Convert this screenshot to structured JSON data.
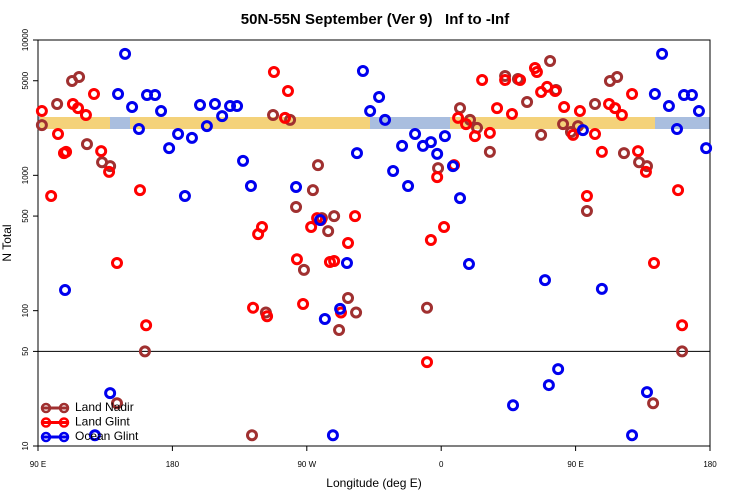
{
  "chart_data": {
    "type": "scatter",
    "title": "50N-55N September (Ver 9)   Inf to -Inf",
    "x_label": "Longitude (deg E)",
    "y_label": "N Total",
    "log_y": true,
    "xlim": [
      90,
      540
    ],
    "ylim": [
      10,
      10000
    ],
    "xticks": [
      {
        "value": 90,
        "label": "90 E"
      },
      180,
      {
        "value": 270,
        "label": "90 W"
      },
      {
        "value": 360,
        "label": "0"
      },
      {
        "value": 450,
        "label": "90 E"
      },
      {
        "value": 540,
        "label": "180"
      }
    ],
    "yticks": [
      10,
      50,
      100,
      500,
      1000,
      5000,
      10000
    ],
    "hline": 50,
    "legend": "lower left",
    "series": [
      {
        "name": "Land Nadir",
        "color": "#a03030",
        "x": [
          92.6,
          102.8,
          112.8,
          117.5,
          122.8,
          132.9,
          138.3,
          142.9,
          161.6,
          233.3,
          242.6,
          247.4,
          258.8,
          262.8,
          268.1,
          274.1,
          277.5,
          280.1,
          284.3,
          288.3,
          291.6,
          297.6,
          303,
          350.5,
          357.9,
          372.6,
          379.3,
          384,
          392.6,
          402.8,
          411.4,
          417.5,
          426.9,
          432.9,
          436.9,
          441.6,
          446.9,
          451.6,
          457.6,
          463,
          473,
          477.8,
          482.4,
          492.5,
          497.8,
          501.9,
          521.3
        ],
        "values": [
          2350,
          3365,
          4980,
          5330,
          1700,
          1250,
          1170,
          20.7,
          50,
          12,
          97,
          2790,
          2570,
          584,
          200,
          778,
          1190,
          483,
          387,
          500,
          72,
          124,
          97,
          105,
          1130,
          3140,
          2570,
          2240,
          1490,
          5420,
          5150,
          3480,
          1990,
          7000,
          4270,
          2390,
          2090,
          2310,
          545,
          3365,
          4980,
          5330,
          1460,
          1250,
          1170,
          20.7,
          50
        ]
      },
      {
        "name": "Land Glint",
        "color": "#ff0000",
        "x": [
          92.6,
          98.8,
          103.4,
          107.4,
          108.8,
          113.4,
          116.8,
          122.1,
          127.5,
          132.3,
          137.6,
          142.9,
          158.3,
          162.4,
          234,
          237.4,
          240,
          243.4,
          248,
          255.4,
          257.4,
          263.4,
          267.5,
          272.9,
          276.9,
          279.5,
          285.5,
          288.3,
          292.9,
          297.6,
          302.3,
          350.5,
          353.1,
          357.3,
          361.9,
          368.6,
          371.3,
          376.6,
          382.6,
          387.4,
          392.6,
          397.4,
          402.8,
          407.4,
          412.8,
          422.8,
          424.1,
          426.9,
          430.9,
          436.3,
          442.3,
          448.3,
          452.9,
          457.6,
          463,
          467.6,
          472.4,
          476.4,
          481,
          487.8,
          491.8,
          497.1,
          502.5,
          518.6,
          521.3
        ],
        "values": [
          2985,
          703,
          2020,
          1460,
          1490,
          3365,
          3140,
          2790,
          3990,
          1510,
          1060,
          225,
          778,
          78,
          105,
          368,
          415,
          91,
          5800,
          2660,
          4200,
          240,
          112,
          415,
          483,
          468,
          229,
          233,
          97,
          316,
          500,
          41.7,
          333,
          970,
          415,
          1190,
          2660,
          2390,
          1950,
          5060,
          2060,
          3140,
          5060,
          2840,
          5060,
          6210,
          5800,
          4130,
          4500,
          4200,
          3200,
          1990,
          2985,
          703,
          2020,
          1490,
          3365,
          3140,
          2790,
          3990,
          1510,
          1060,
          225,
          778,
          78
        ]
      },
      {
        "name": "Ocean Glint",
        "color": "#0000ee",
        "x": [
          108.1,
          128.1,
          138.3,
          143.6,
          148.3,
          153,
          157.6,
          163,
          168.4,
          172.4,
          177.8,
          183.8,
          188.4,
          193.1,
          198.5,
          203.1,
          208.5,
          213.3,
          218.6,
          223.3,
          227.3,
          232.6,
          262.8,
          278.9,
          282.1,
          287.5,
          292.3,
          296.9,
          303.6,
          307.6,
          312.4,
          318.4,
          322.4,
          327.8,
          333.8,
          337.8,
          342.5,
          347.8,
          353.1,
          357.3,
          362.5,
          367.9,
          372.6,
          378.6,
          408.1,
          429.5,
          432.1,
          438.3,
          454.9,
          467.6,
          487.8,
          497.8,
          503.1,
          507.9,
          512.5,
          517.9,
          522.6,
          527.9,
          532.6,
          537.4
        ],
        "values": [
          142,
          12,
          24.6,
          3990,
          7890,
          3200,
          2200,
          3920,
          3920,
          2985,
          1590,
          2020,
          703,
          1890,
          3310,
          2310,
          3365,
          2740,
          3250,
          3250,
          1280,
          834,
          820,
          468,
          86.7,
          12,
          103,
          225,
          1460,
          5900,
          2985,
          3790,
          2570,
          1076,
          1650,
          834,
          2020,
          1650,
          1760,
          1440,
          1950,
          1170,
          679,
          221,
          20,
          168,
          28.2,
          37,
          2160,
          145,
          12,
          25,
          3990,
          7890,
          3250,
          2200,
          3920,
          3920,
          2985,
          1590
        ]
      }
    ]
  }
}
